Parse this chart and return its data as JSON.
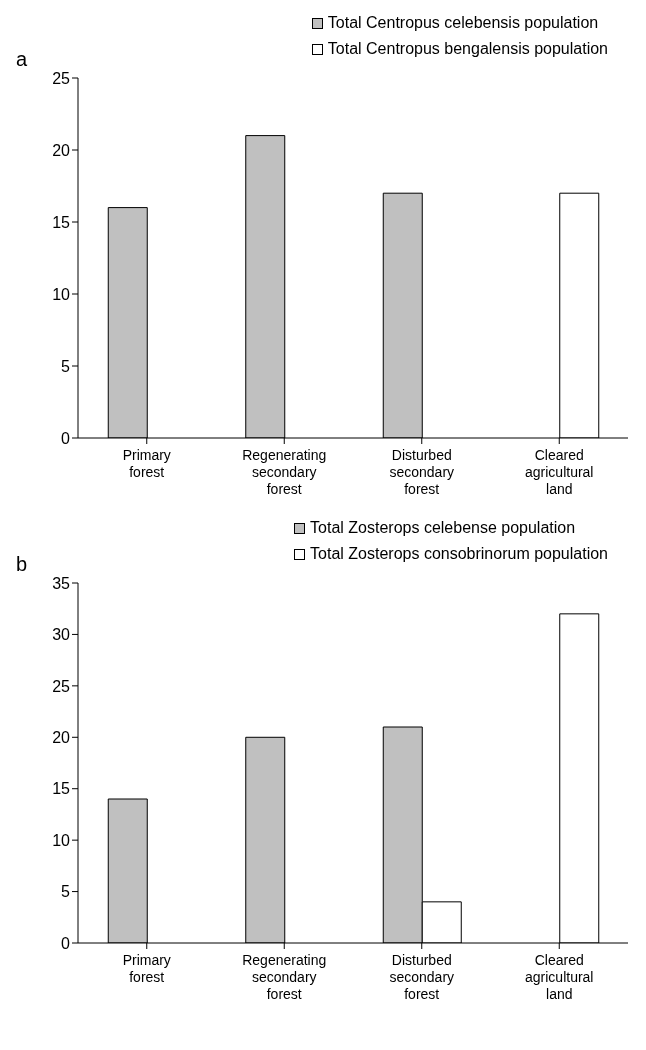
{
  "chart_data": [
    {
      "type": "bar",
      "annotations": [
        "a"
      ],
      "categories": [
        "Primary forest",
        "Regenerating secondary forest",
        "Disturbed secondary forest",
        "Cleared agricultural land"
      ],
      "series": [
        {
          "name": "Total Centropus celebensis population",
          "color": "#c0c0c0",
          "values": [
            16,
            21,
            17,
            0
          ]
        },
        {
          "name": "Total Centropus bengalensis population",
          "color": "#ffffff",
          "values": [
            0,
            0,
            0,
            17
          ]
        }
      ],
      "ylim": [
        0,
        25
      ],
      "yticks": [
        0,
        5,
        10,
        15,
        20,
        25
      ],
      "grid": false,
      "legend": "top right"
    },
    {
      "type": "bar",
      "annotations": [
        "b"
      ],
      "categories": [
        "Primary forest",
        "Regenerating secondary forest",
        "Disturbed secondary forest",
        "Cleared agricultural land"
      ],
      "series": [
        {
          "name": "Total Zosterops celebense population",
          "color": "#c0c0c0",
          "values": [
            14,
            20,
            21,
            0
          ]
        },
        {
          "name": "Total Zosterops consobrinorum population",
          "color": "#ffffff",
          "values": [
            0,
            0,
            4,
            32
          ]
        }
      ],
      "ylim": [
        0,
        35
      ],
      "yticks": [
        0,
        5,
        10,
        15,
        20,
        25,
        30,
        35
      ],
      "grid": false,
      "legend": "top right"
    }
  ]
}
